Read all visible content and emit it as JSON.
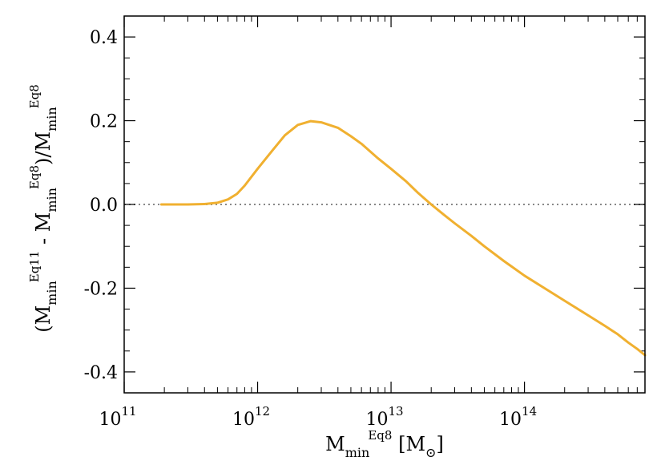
{
  "chart_data": {
    "type": "line",
    "x_scale": "log",
    "xlim": [
      100000000000.0,
      800000000000000.0
    ],
    "ylim": [
      -0.45,
      0.45
    ],
    "xticks": [
      100000000000.0,
      1000000000000.0,
      10000000000000.0,
      100000000000000.0
    ],
    "xtick_labels": [
      {
        "base": "10",
        "exp": "11"
      },
      {
        "base": "10",
        "exp": "12"
      },
      {
        "base": "10",
        "exp": "13"
      },
      {
        "base": "10",
        "exp": "14"
      }
    ],
    "yticks": [
      0.4,
      0.2,
      0.0,
      -0.2,
      -0.4
    ],
    "ytick_labels": [
      "0.4",
      "0.2",
      "0.0",
      "-0.2",
      "-0.4"
    ],
    "xlabel": {
      "main": "M",
      "sub": "min",
      "sup": "Eq8",
      "unit_open": " [M",
      "unit_sub": "⊙",
      "unit_close": "]"
    },
    "ylabel": {
      "p1": "(M",
      "s1_sub": "min",
      "s1_sup": "Eq11",
      "p2": " - M",
      "s2_sub": "min",
      "s2_sup": "Eq8",
      "p3": ")/M",
      "s3_sub": "min",
      "s3_sup": "Eq8"
    },
    "reference_line": {
      "y": 0.0,
      "style": "dotted",
      "color": "#888888"
    },
    "series": [
      {
        "color": "#f0b030",
        "points": [
          [
            190000000000.0,
            0.0
          ],
          [
            300000000000.0,
            0.0
          ],
          [
            400000000000.0,
            0.001
          ],
          [
            500000000000.0,
            0.004
          ],
          [
            600000000000.0,
            0.012
          ],
          [
            700000000000.0,
            0.025
          ],
          [
            800000000000.0,
            0.045
          ],
          [
            1000000000000.0,
            0.085
          ],
          [
            1300000000000.0,
            0.13
          ],
          [
            1600000000000.0,
            0.165
          ],
          [
            2000000000000.0,
            0.19
          ],
          [
            2500000000000.0,
            0.199
          ],
          [
            3000000000000.0,
            0.196
          ],
          [
            4000000000000.0,
            0.183
          ],
          [
            5000000000000.0,
            0.163
          ],
          [
            6000000000000.0,
            0.145
          ],
          [
            8000000000000.0,
            0.11
          ],
          [
            10000000000000.0,
            0.085
          ],
          [
            13000000000000.0,
            0.055
          ],
          [
            16000000000000.0,
            0.027
          ],
          [
            20000000000000.0,
            0.0
          ],
          [
            25000000000000.0,
            -0.025
          ],
          [
            30000000000000.0,
            -0.045
          ],
          [
            40000000000000.0,
            -0.075
          ],
          [
            50000000000000.0,
            -0.1
          ],
          [
            70000000000000.0,
            -0.135
          ],
          [
            100000000000000.0,
            -0.17
          ],
          [
            150000000000000.0,
            -0.205
          ],
          [
            200000000000000.0,
            -0.23
          ],
          [
            300000000000000.0,
            -0.265
          ],
          [
            400000000000000.0,
            -0.29
          ],
          [
            500000000000000.0,
            -0.31
          ],
          [
            600000000000000.0,
            -0.33
          ],
          [
            700000000000000.0,
            -0.345
          ],
          [
            800000000000000.0,
            -0.36
          ]
        ]
      }
    ],
    "axis_color": "#000000"
  }
}
